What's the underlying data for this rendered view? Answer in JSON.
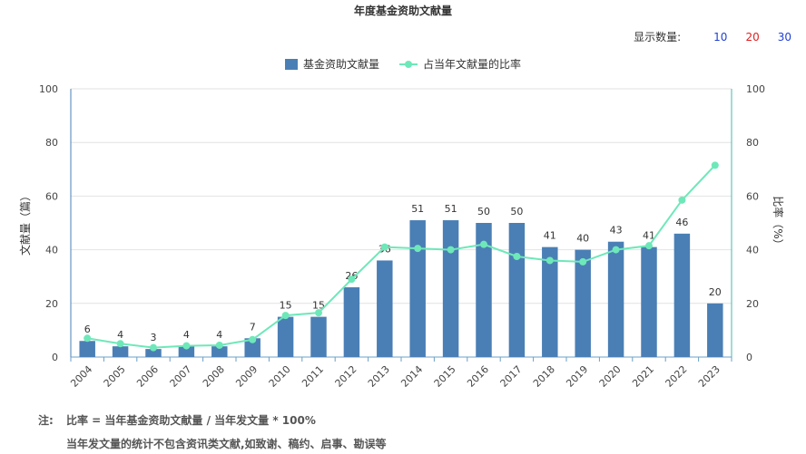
{
  "title": "年度基金资助文献量",
  "count_selector": {
    "label": "显示数量:",
    "options": [
      {
        "value": "10",
        "color": "#1f3fd6"
      },
      {
        "value": "20",
        "color": "#e02020"
      },
      {
        "value": "30",
        "color": "#1f3fd6"
      }
    ]
  },
  "colors": {
    "bar": "#4a7fb5",
    "line": "#6ee8b9",
    "left_axis": "#4a7fb5",
    "right_axis": "#45b9a8",
    "grid": "#e2e2e2"
  },
  "chart_data": {
    "type": "bar",
    "categories": [
      "2004",
      "2005",
      "2006",
      "2007",
      "2008",
      "2009",
      "2010",
      "2011",
      "2012",
      "2013",
      "2014",
      "2015",
      "2016",
      "2017",
      "2018",
      "2019",
      "2020",
      "2021",
      "2022",
      "2023"
    ],
    "series": [
      {
        "name": "基金资助文献量",
        "type": "bar",
        "axis": "left",
        "values": [
          6,
          4,
          3,
          4,
          4,
          7,
          15,
          15,
          26,
          36,
          51,
          51,
          50,
          50,
          41,
          40,
          43,
          41,
          46,
          20
        ]
      },
      {
        "name": "占当年文献量的比率",
        "type": "line",
        "axis": "right",
        "values": [
          7,
          5,
          3.5,
          4.2,
          4.4,
          6.5,
          15.5,
          16.5,
          29,
          41,
          40.5,
          40,
          42,
          37.5,
          36,
          35.5,
          40,
          41.5,
          58.5,
          71.5
        ]
      }
    ],
    "ylabel_left": "文献量（篇）",
    "ylabel_right": "比率（%）",
    "ylim_left": [
      0,
      100
    ],
    "ylim_right": [
      0,
      100
    ],
    "yticks": [
      0,
      20,
      40,
      60,
      80,
      100
    ],
    "grid": true,
    "legend_position": "top-center"
  },
  "notes": {
    "prefix": "注:",
    "line1": "比率 = 当年基金资助文献量 / 当年发文量 * 100%",
    "line2": "当年发文量的统计不包含资讯类文献,如致谢、稿约、启事、勘误等"
  }
}
